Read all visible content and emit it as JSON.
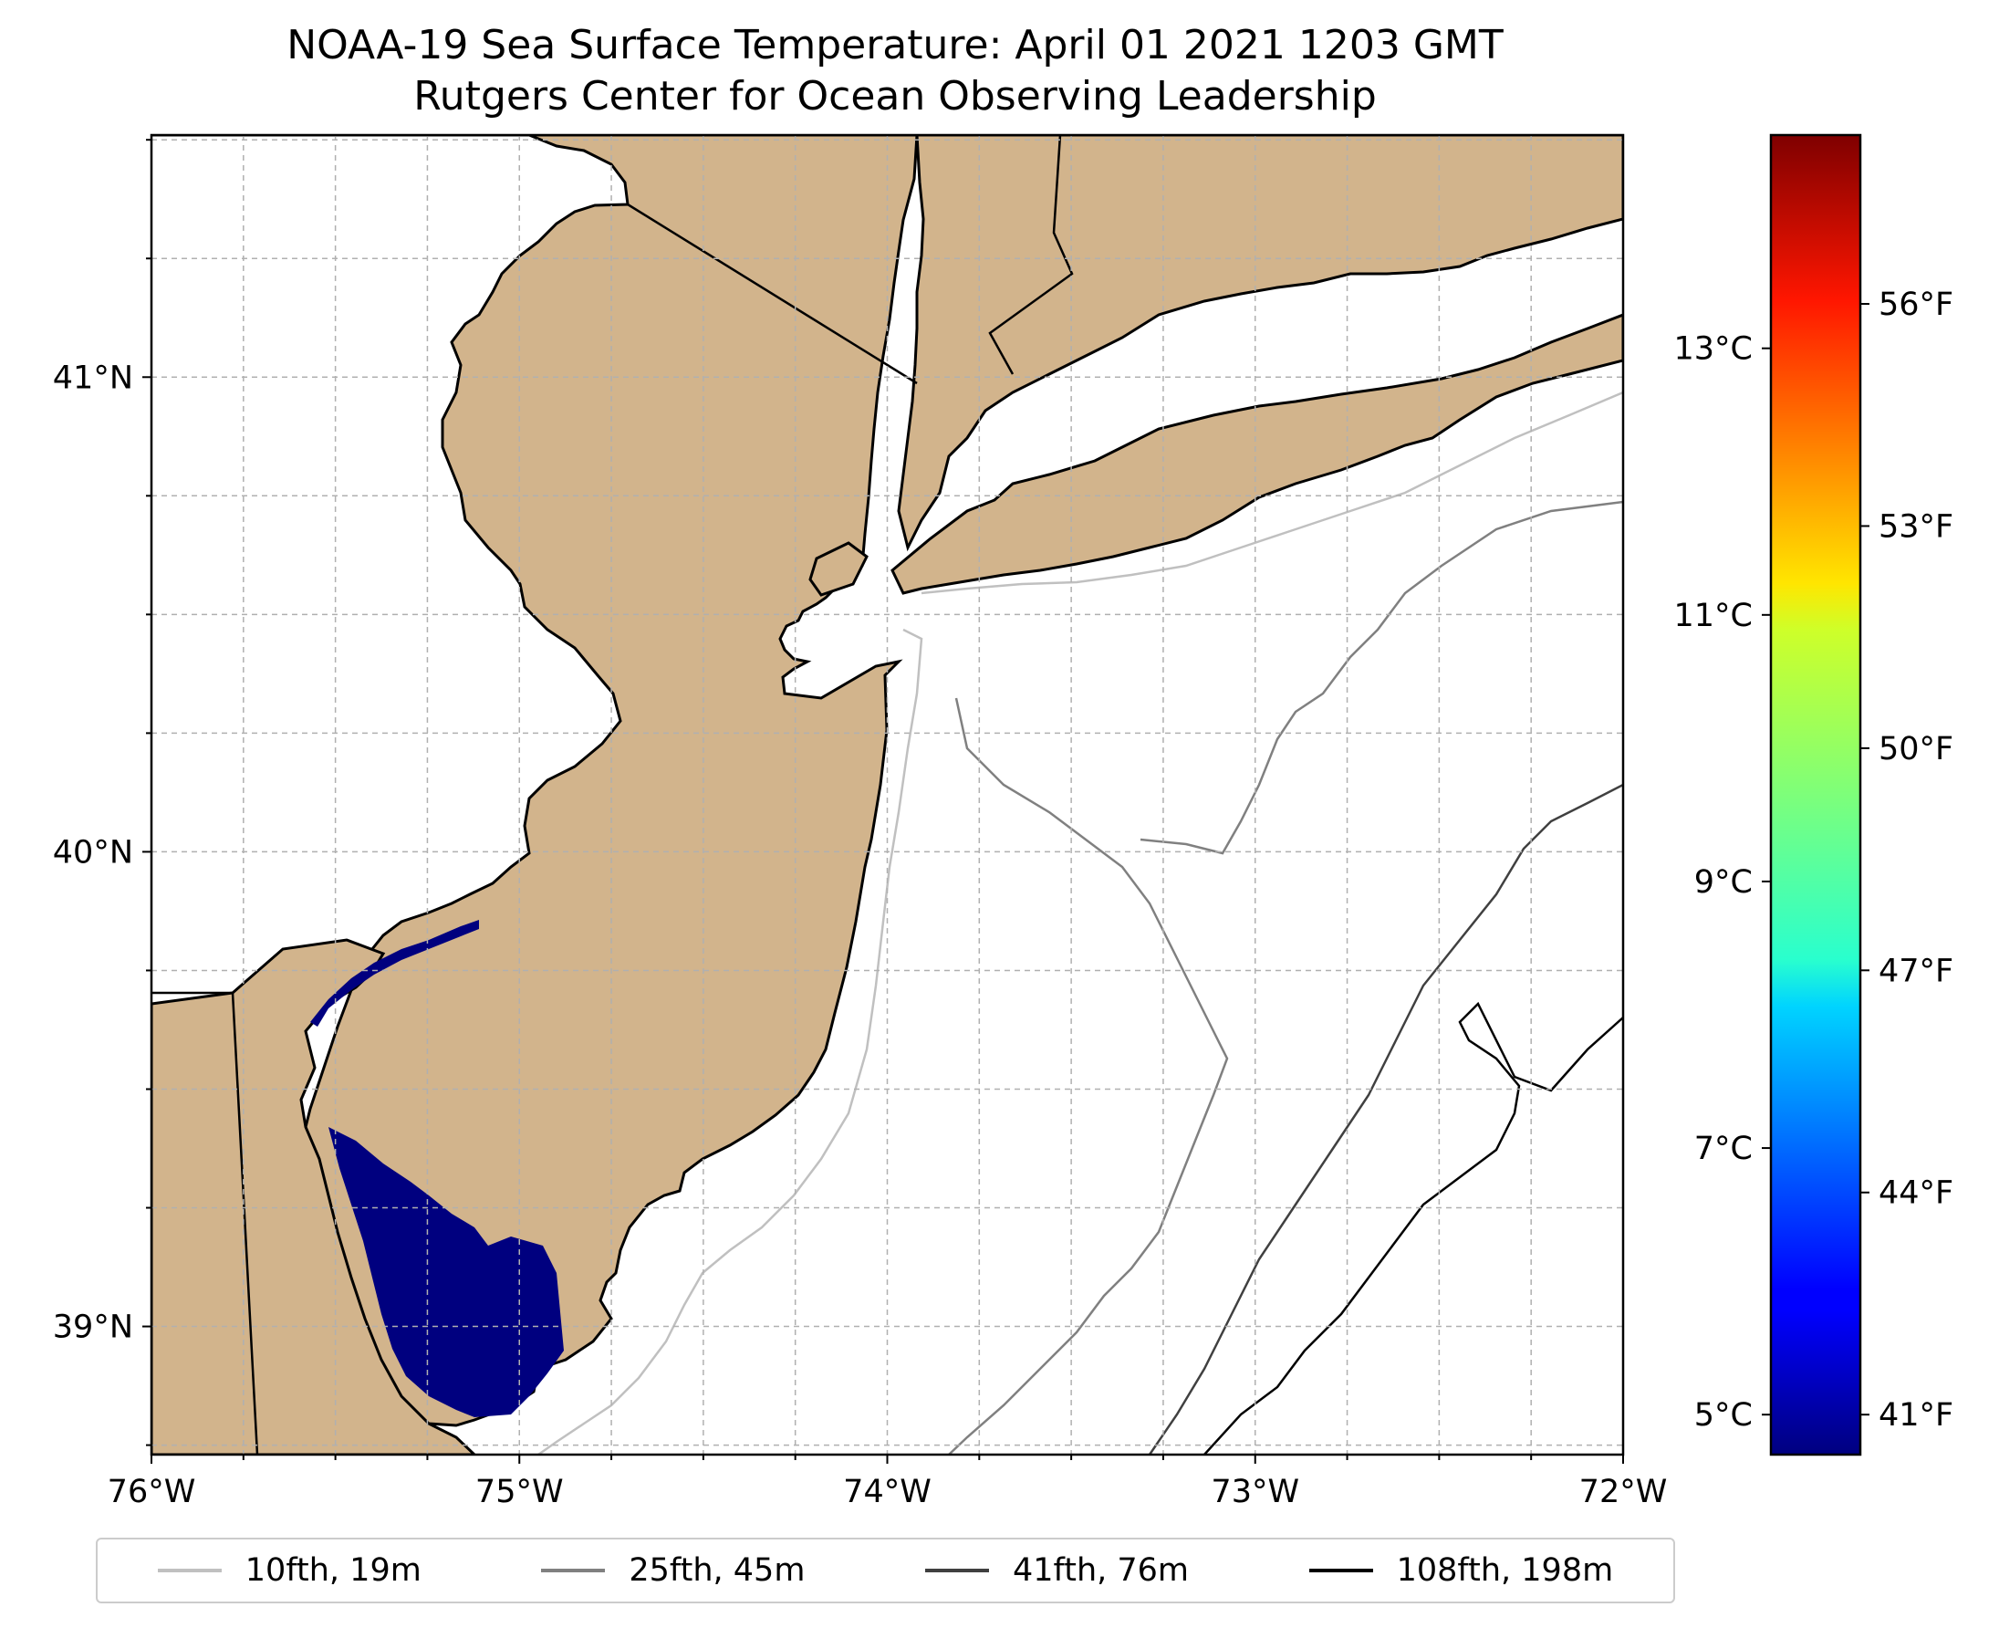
{
  "title": {
    "line1": "NOAA-19 Sea Surface Temperature: April 01 2021 1203 GMT",
    "line2": "Rutgers Center for Ocean Observing Leadership"
  },
  "colors": {
    "land": "#d2b48c",
    "ocean": "#ffffff",
    "sst_fill": "#00007f",
    "grid": "#b0b0b0",
    "coastline": "#000000"
  },
  "axes": {
    "x_ticks": [
      {
        "value": -76,
        "label": "76°W"
      },
      {
        "value": -75,
        "label": "75°W"
      },
      {
        "value": -74,
        "label": "74°W"
      },
      {
        "value": -73,
        "label": "73°W"
      },
      {
        "value": -72,
        "label": "72°W"
      }
    ],
    "y_ticks": [
      {
        "value": 39,
        "label": "39°N"
      },
      {
        "value": 40,
        "label": "40°N"
      },
      {
        "value": 41,
        "label": "41°N"
      }
    ],
    "lon_range": [
      -76,
      -72
    ],
    "lat_range": [
      38.73,
      41.51
    ]
  },
  "colorbar": {
    "range_c": [
      4.7,
      14.6
    ],
    "celsius_ticks": [
      {
        "value": 5,
        "label": "5°C"
      },
      {
        "value": 7,
        "label": "7°C"
      },
      {
        "value": 9,
        "label": "9°C"
      },
      {
        "value": 11,
        "label": "11°C"
      },
      {
        "value": 13,
        "label": "13°C"
      }
    ],
    "fahrenheit_ticks": [
      {
        "value": 41,
        "label": "41°F"
      },
      {
        "value": 44,
        "label": "44°F"
      },
      {
        "value": 47,
        "label": "47°F"
      },
      {
        "value": 50,
        "label": "50°F"
      },
      {
        "value": 53,
        "label": "53°F"
      },
      {
        "value": 56,
        "label": "56°F"
      }
    ],
    "colormap": "jet"
  },
  "legend": {
    "placement": "bottom-center",
    "items": [
      {
        "label": "10fth, 19m",
        "color": "#c0c0c0"
      },
      {
        "label": "25fth, 45m",
        "color": "#808080"
      },
      {
        "label": "41fth, 76m",
        "color": "#404040"
      },
      {
        "label": "108fth, 198m",
        "color": "#000000"
      }
    ]
  }
}
